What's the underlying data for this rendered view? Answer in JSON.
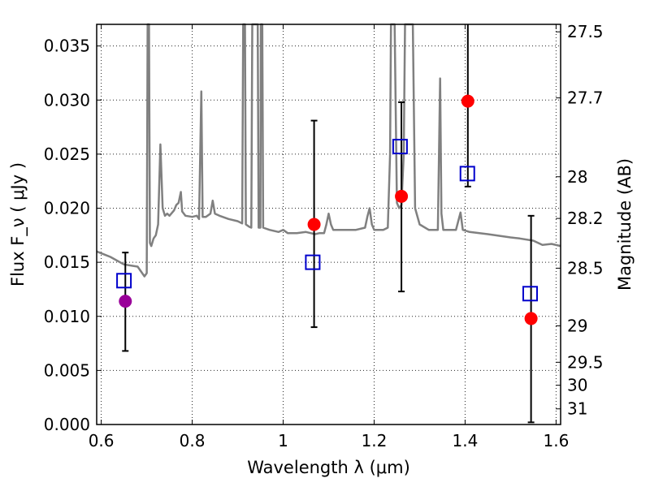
{
  "chart_data": {
    "type": "scatter",
    "title": "",
    "xlabel": "Wavelength  λ (μm)",
    "ylabel": "Flux  F_ν  ( μJy )",
    "y2label": "Magnitude (AB)",
    "xlim": [
      0.59,
      1.61
    ],
    "ylim": [
      0.0,
      0.037
    ],
    "grid": true,
    "xticks": [
      {
        "value": 0.6,
        "label": "0.6"
      },
      {
        "value": 0.8,
        "label": "0.8"
      },
      {
        "value": 1.0,
        "label": "1"
      },
      {
        "value": 1.2,
        "label": "1.2"
      },
      {
        "value": 1.4,
        "label": "1.4"
      },
      {
        "value": 1.6,
        "label": "1.6"
      }
    ],
    "yticks": [
      {
        "value": 0.0,
        "label": "0.000"
      },
      {
        "value": 0.005,
        "label": "0.005"
      },
      {
        "value": 0.01,
        "label": "0.010"
      },
      {
        "value": 0.015,
        "label": "0.015"
      },
      {
        "value": 0.02,
        "label": "0.020"
      },
      {
        "value": 0.025,
        "label": "0.025"
      },
      {
        "value": 0.03,
        "label": "0.030"
      },
      {
        "value": 0.035,
        "label": "0.035"
      }
    ],
    "y2ticks": [
      {
        "mag": 27.5,
        "label": "27.5"
      },
      {
        "mag": 27.7,
        "label": "27.7"
      },
      {
        "mag": 28.0,
        "label": "28"
      },
      {
        "mag": 28.2,
        "label": "28.2"
      },
      {
        "mag": 28.5,
        "label": "28.5"
      },
      {
        "mag": 29.0,
        "label": "29"
      },
      {
        "mag": 29.5,
        "label": "29.5"
      },
      {
        "mag": 30.0,
        "label": "30"
      },
      {
        "mag": 31.0,
        "label": "31"
      }
    ],
    "series": [
      {
        "kind": "line",
        "color": "#808080",
        "points": [
          [
            0.59,
            0.016
          ],
          [
            0.62,
            0.0155
          ],
          [
            0.65,
            0.0148
          ],
          [
            0.68,
            0.0146
          ],
          [
            0.69,
            0.014
          ],
          [
            0.695,
            0.0137
          ],
          [
            0.7,
            0.014
          ],
          [
            0.702,
            0.037
          ],
          [
            0.705,
            0.037
          ],
          [
            0.707,
            0.0168
          ],
          [
            0.71,
            0.0165
          ],
          [
            0.715,
            0.0172
          ],
          [
            0.72,
            0.0175
          ],
          [
            0.725,
            0.0185
          ],
          [
            0.73,
            0.0259
          ],
          [
            0.735,
            0.02
          ],
          [
            0.74,
            0.0193
          ],
          [
            0.745,
            0.0195
          ],
          [
            0.75,
            0.0193
          ],
          [
            0.76,
            0.0198
          ],
          [
            0.765,
            0.0203
          ],
          [
            0.77,
            0.0205
          ],
          [
            0.775,
            0.0215
          ],
          [
            0.778,
            0.0197
          ],
          [
            0.785,
            0.0193
          ],
          [
            0.8,
            0.0192
          ],
          [
            0.81,
            0.0193
          ],
          [
            0.815,
            0.019
          ],
          [
            0.82,
            0.0308
          ],
          [
            0.823,
            0.0192
          ],
          [
            0.83,
            0.0192
          ],
          [
            0.84,
            0.0195
          ],
          [
            0.845,
            0.0207
          ],
          [
            0.85,
            0.0195
          ],
          [
            0.86,
            0.0193
          ],
          [
            0.88,
            0.019
          ],
          [
            0.9,
            0.0188
          ],
          [
            0.91,
            0.0186
          ],
          [
            0.912,
            0.037
          ],
          [
            0.916,
            0.037
          ],
          [
            0.918,
            0.0185
          ],
          [
            0.925,
            0.0183
          ],
          [
            0.93,
            0.0182
          ],
          [
            0.932,
            0.037
          ],
          [
            0.944,
            0.037
          ],
          [
            0.946,
            0.0182
          ],
          [
            0.95,
            0.0182
          ],
          [
            0.951,
            0.037
          ],
          [
            0.954,
            0.037
          ],
          [
            0.956,
            0.0182
          ],
          [
            0.97,
            0.018
          ],
          [
            0.99,
            0.0178
          ],
          [
            1.0,
            0.018
          ],
          [
            1.01,
            0.0177
          ],
          [
            1.03,
            0.0177
          ],
          [
            1.05,
            0.0178
          ],
          [
            1.07,
            0.0176
          ],
          [
            1.08,
            0.0177
          ],
          [
            1.09,
            0.0177
          ],
          [
            1.095,
            0.0185
          ],
          [
            1.1,
            0.0195
          ],
          [
            1.105,
            0.0185
          ],
          [
            1.11,
            0.018
          ],
          [
            1.13,
            0.018
          ],
          [
            1.16,
            0.018
          ],
          [
            1.18,
            0.0182
          ],
          [
            1.185,
            0.0192
          ],
          [
            1.19,
            0.02
          ],
          [
            1.195,
            0.0185
          ],
          [
            1.2,
            0.018
          ],
          [
            1.22,
            0.018
          ],
          [
            1.23,
            0.0182
          ],
          [
            1.235,
            0.025
          ],
          [
            1.237,
            0.037
          ],
          [
            1.245,
            0.037
          ],
          [
            1.25,
            0.0205
          ],
          [
            1.255,
            0.02
          ],
          [
            1.26,
            0.0203
          ],
          [
            1.265,
            0.025
          ],
          [
            1.268,
            0.037
          ],
          [
            1.285,
            0.037
          ],
          [
            1.29,
            0.02
          ],
          [
            1.3,
            0.0185
          ],
          [
            1.32,
            0.018
          ],
          [
            1.34,
            0.018
          ],
          [
            1.345,
            0.032
          ],
          [
            1.348,
            0.0195
          ],
          [
            1.352,
            0.018
          ],
          [
            1.37,
            0.018
          ],
          [
            1.38,
            0.018
          ],
          [
            1.385,
            0.0188
          ],
          [
            1.39,
            0.0196
          ],
          [
            1.395,
            0.018
          ],
          [
            1.41,
            0.0178
          ],
          [
            1.45,
            0.0176
          ],
          [
            1.5,
            0.0173
          ],
          [
            1.52,
            0.0172
          ],
          [
            1.55,
            0.017
          ],
          [
            1.57,
            0.0166
          ],
          [
            1.59,
            0.0167
          ],
          [
            1.61,
            0.0165
          ]
        ]
      },
      {
        "kind": "errorbar",
        "color": "#000000",
        "points": [
          {
            "x": 0.653,
            "y": 0.0114,
            "lo": 0.0068,
            "hi": 0.0159
          },
          {
            "x": 1.068,
            "y": 0.0185,
            "lo": 0.009,
            "hi": 0.0281
          },
          {
            "x": 1.26,
            "y": 0.0211,
            "lo": 0.0123,
            "hi": 0.0298
          },
          {
            "x": 1.406,
            "y": 0.0299,
            "lo": 0.022,
            "hi": 0.037
          },
          {
            "x": 1.545,
            "y": 0.0098,
            "lo": 0.0002,
            "hi": 0.0193
          }
        ]
      },
      {
        "kind": "circle",
        "color": "#ff0000",
        "points": [
          [
            1.068,
            0.0185
          ],
          [
            1.26,
            0.0211
          ],
          [
            1.406,
            0.0299
          ],
          [
            1.545,
            0.0098
          ]
        ]
      },
      {
        "kind": "circle",
        "color": "#990099",
        "points": [
          [
            0.653,
            0.0114
          ]
        ]
      },
      {
        "kind": "square",
        "color": "#0000cc",
        "points": [
          [
            0.65,
            0.0133
          ],
          [
            1.065,
            0.015
          ],
          [
            1.257,
            0.0257
          ],
          [
            1.405,
            0.0232
          ],
          [
            1.543,
            0.0121
          ]
        ]
      }
    ]
  }
}
